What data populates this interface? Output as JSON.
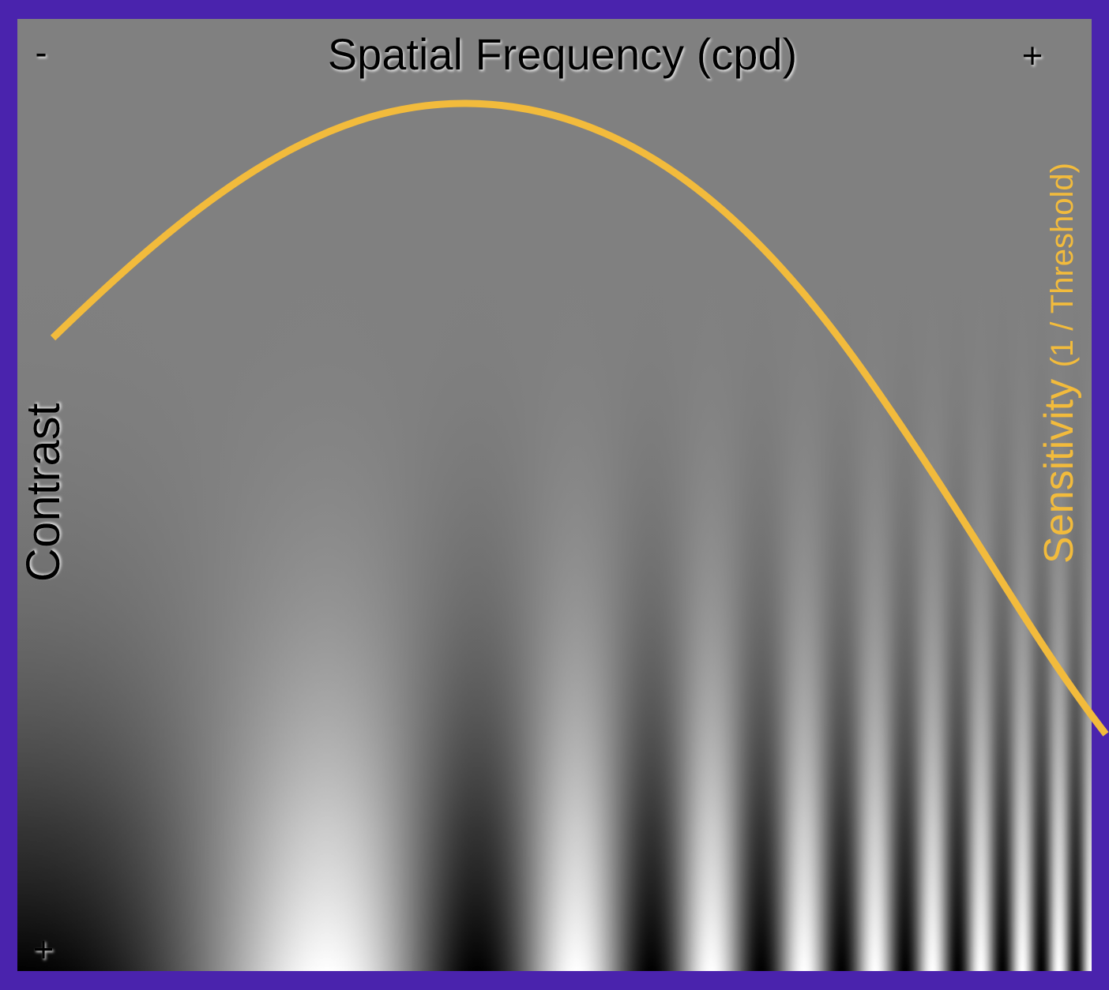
{
  "figure": {
    "title": "Spatial Frequency (cpd)",
    "x_min_marker": "-",
    "x_max_marker": "+",
    "y_label": "Contrast",
    "y_max_marker": "+",
    "curve_label": "Sensitivity",
    "curve_label_suffix": "(1 / Threshold)"
  },
  "colors": {
    "frame": "#4a23ad",
    "background_gray": "#808080",
    "curve": "#f2bb3c",
    "label_text": "#000000",
    "curve_text": "#f2bb3c"
  }
}
